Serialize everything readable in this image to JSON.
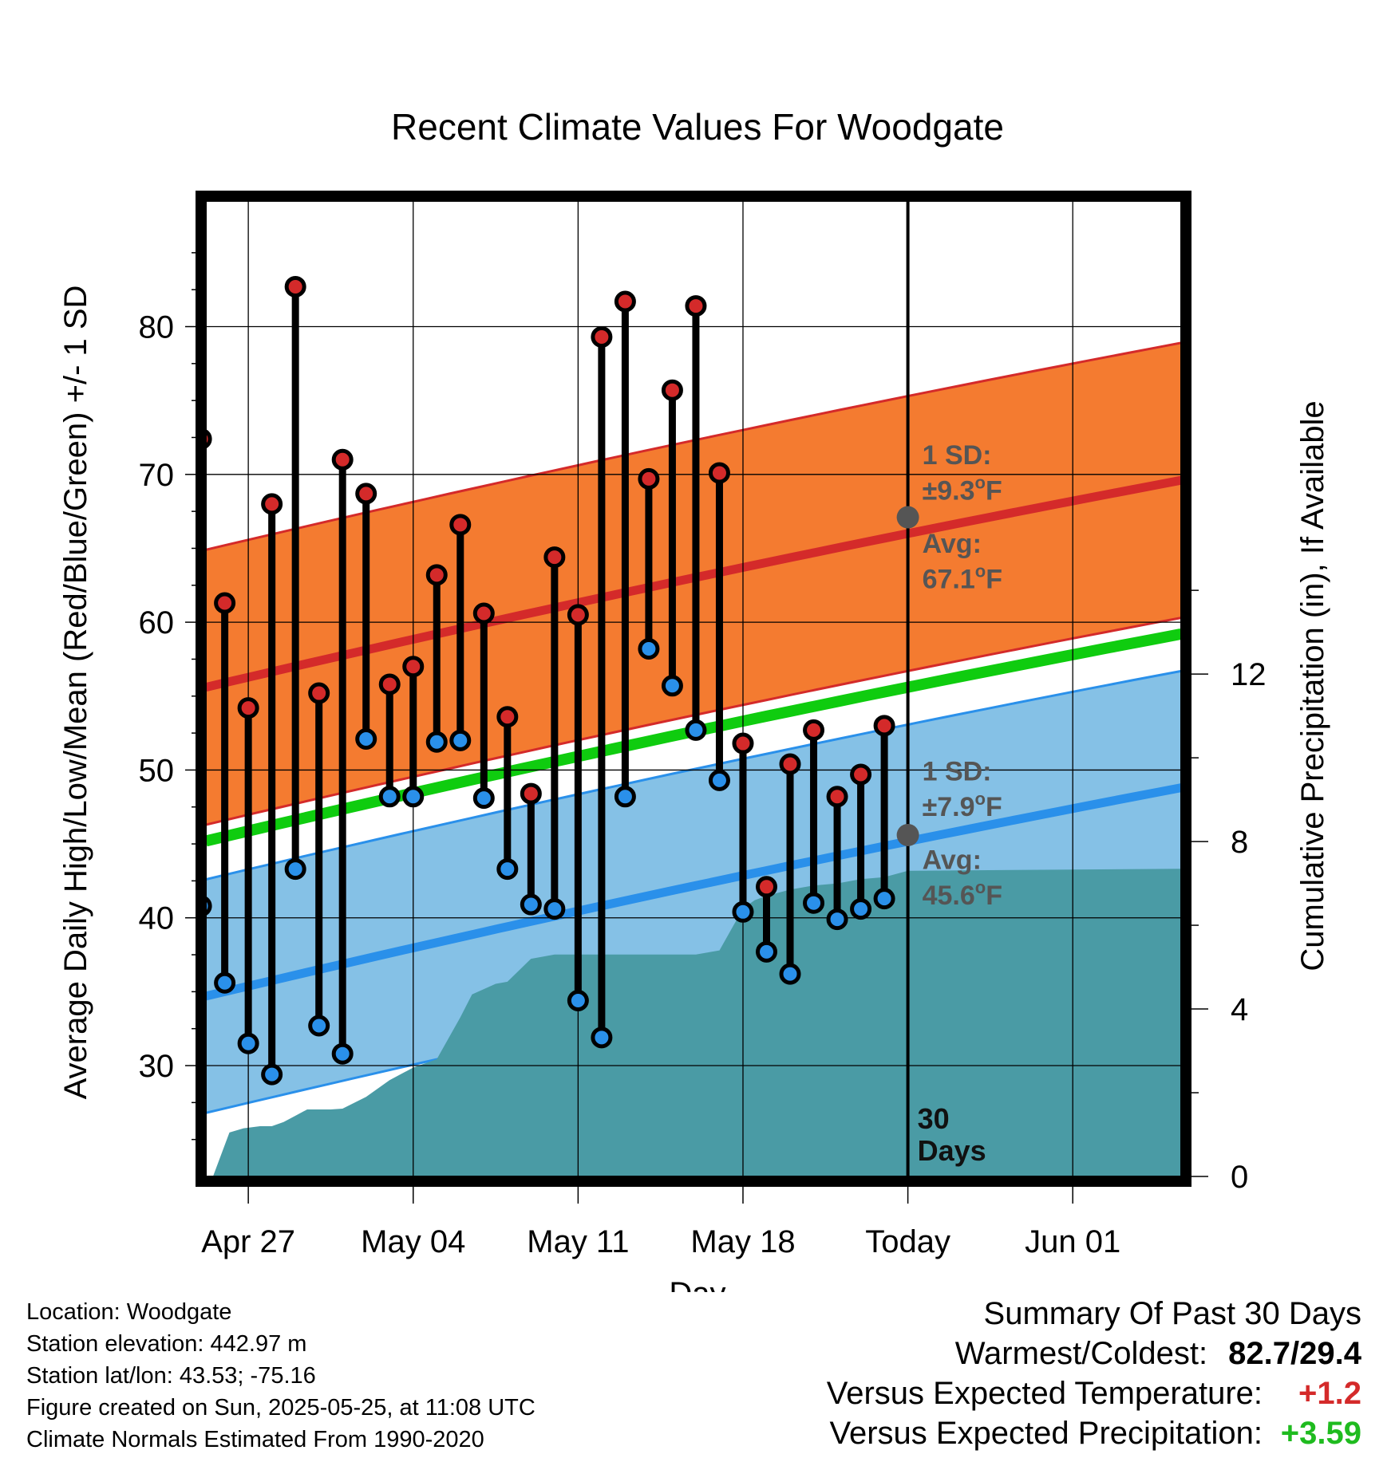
{
  "chart_data": {
    "type": "line",
    "title": "Recent Climate Values For Woodgate",
    "xlabel": "Day",
    "ylabel_left": "Average Daily High/Low/Mean (Red/Blue/Green) +/- 1 SD",
    "ylabel_right": "Cumulative Precipitation (in), If Available",
    "y_left_range": [
      22.5,
      88.5
    ],
    "y_left_ticks": [
      30,
      40,
      50,
      60,
      70,
      80
    ],
    "y_right_range": [
      0,
      23.3
    ],
    "y_right_ticks": [
      0,
      4,
      8,
      12
    ],
    "x_range": [
      -29.8,
      11.6
    ],
    "x_ticks": [
      {
        "day": -28,
        "label": "Apr 27"
      },
      {
        "day": -21,
        "label": "May 04"
      },
      {
        "day": -14,
        "label": "May 11"
      },
      {
        "day": -7,
        "label": "May 18"
      },
      {
        "day": 0,
        "label": "Today"
      },
      {
        "day": 7,
        "label": "Jun 01"
      }
    ],
    "grid": true,
    "normals": {
      "days": [
        -29.8,
        11.6
      ],
      "avg_high": [
        55.6,
        69.6
      ],
      "avg_low": [
        34.7,
        48.8
      ],
      "avg_mean": [
        45.2,
        59.2
      ],
      "high_sd": 9.3,
      "low_sd": 7.9
    },
    "daily": {
      "days": [
        -30,
        -29,
        -28,
        -27,
        -26,
        -25,
        -24,
        -23,
        -22,
        -21,
        -20,
        -19,
        -18,
        -17,
        -16,
        -15,
        -14,
        -13,
        -12,
        -11,
        -10,
        -9,
        -8,
        -7,
        -6,
        -5,
        -4,
        -3,
        -2,
        -1
      ],
      "highs": [
        72.4,
        61.3,
        54.2,
        68.0,
        82.7,
        55.2,
        71.0,
        68.7,
        55.8,
        57.0,
        63.2,
        66.6,
        60.6,
        53.6,
        48.4,
        64.4,
        60.5,
        79.3,
        81.7,
        69.7,
        75.7,
        81.4,
        70.1,
        51.8,
        42.1,
        50.4,
        52.7,
        48.2,
        49.7,
        53.0
      ],
      "lows": [
        40.8,
        35.6,
        31.5,
        29.4,
        43.3,
        32.7,
        30.8,
        52.1,
        48.2,
        48.2,
        51.9,
        52.0,
        48.1,
        43.3,
        40.9,
        40.6,
        34.4,
        31.9,
        48.2,
        58.2,
        55.7,
        52.7,
        49.3,
        40.4,
        37.7,
        36.2,
        41.0,
        39.9,
        40.6,
        41.3
      ]
    },
    "precipitation": {
      "days": [
        -29.5,
        -28.8,
        -28.2,
        -27.5,
        -27.0,
        -26.5,
        -25.5,
        -24.5,
        -24.0,
        -23.0,
        -22.0,
        -21.0,
        -20.0,
        -19.0,
        -18.5,
        -17.5,
        -17.0,
        -16.0,
        -15.0,
        -14.0,
        -13.0,
        -12.0,
        -11.0,
        -10.0,
        -9.0,
        -8.0,
        -7.0,
        -6.5,
        -6.0,
        -5.0,
        -4.0,
        -3.0,
        -2.0,
        -1.0,
        0.0,
        11.6
      ],
      "cumulative": [
        0.0,
        1.05,
        1.15,
        1.2,
        1.2,
        1.3,
        1.6,
        1.6,
        1.62,
        1.9,
        2.3,
        2.6,
        2.8,
        3.8,
        4.35,
        4.6,
        4.65,
        5.2,
        5.3,
        5.3,
        5.3,
        5.3,
        5.3,
        5.3,
        5.3,
        5.4,
        6.4,
        6.6,
        6.7,
        6.85,
        6.95,
        7.0,
        7.1,
        7.15,
        7.3,
        7.35
      ]
    },
    "series": [
      {
        "name": "High",
        "color": "#d42a2a"
      },
      {
        "name": "Low",
        "color": "#2a90ea"
      },
      {
        "name": "Mean",
        "color": "#0fcc0f"
      }
    ],
    "annotations": {
      "high_sd_label": "1 SD:",
      "high_sd_value": "±9.3",
      "high_avg_label": "Avg:",
      "high_avg_value": "67.1",
      "low_sd_label": "1 SD:",
      "low_sd_value": "±7.9",
      "low_avg_label": "Avg:",
      "low_avg_value": "45.6",
      "degree_symbol": "o",
      "unit": "F",
      "days_number": "30",
      "days_word": "Days"
    },
    "colors": {
      "high_band": "#f47b30",
      "high_line": "#d42a2a",
      "low_band": "#85c1e6",
      "low_line": "#2a90ea",
      "mean_line": "#0fcc0f",
      "precip": "#4a9ba5",
      "annot": "#555555"
    }
  },
  "footer": {
    "location": "Location: Woodgate",
    "elevation": "Station elevation: 442.97 m",
    "latlon": "Station lat/lon: 43.53; -75.16",
    "created": "Figure created on Sun, 2025-05-25, at 11:08 UTC",
    "normals": "Climate Normals Estimated From 1990-2020"
  },
  "summary": {
    "heading": "Summary Of Past 30 Days",
    "warmest_coldest_label": "Warmest/Coldest:",
    "warmest": "82.7",
    "separator": "/",
    "coldest": "29.4",
    "temp_label": "Versus Expected Temperature:",
    "temp_value": "+1.2",
    "temp_color": "#d42a2a",
    "precip_label": "Versus Expected Precipitation:",
    "precip_value": "+3.59",
    "precip_color": "#1fbb1f"
  }
}
